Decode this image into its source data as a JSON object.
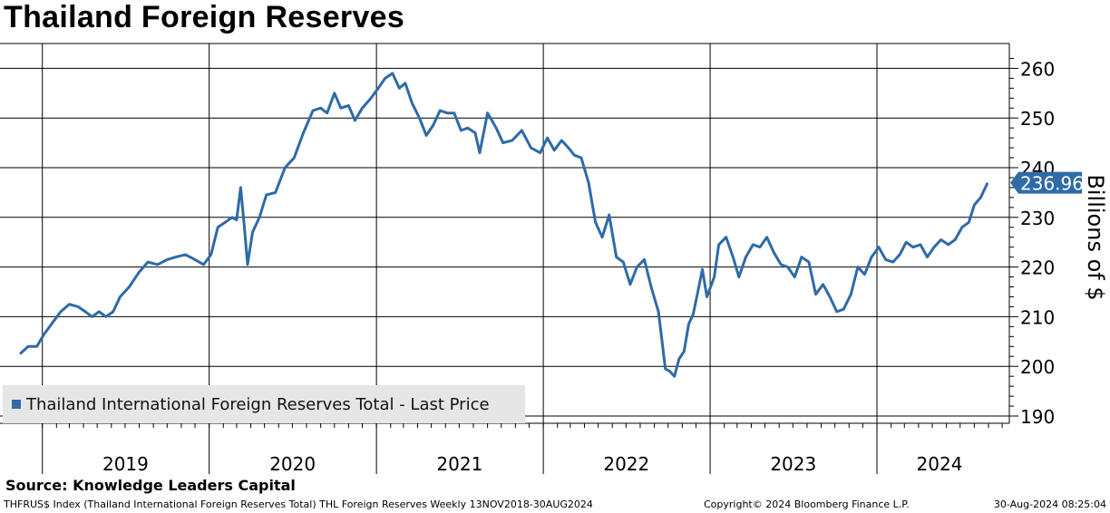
{
  "header": {
    "title": "Thailand Foreign Reserves"
  },
  "chart_data": {
    "type": "line",
    "title": "Thailand Foreign Reserves",
    "ylabel": "Billions of $",
    "ylim": [
      188,
      265
    ],
    "yticks": [
      190,
      200,
      210,
      220,
      230,
      240,
      250,
      260
    ],
    "year_labels": [
      "2019",
      "2020",
      "2021",
      "2022",
      "2023",
      "2024"
    ],
    "grid": true,
    "legend_position": "bottom-left",
    "last_value": 236.96,
    "last_value_label": "236.96",
    "series": [
      {
        "name": "Thailand International Foreign Reserves Total - Last Price",
        "color": "#2e6ba7",
        "start": "2018-11-13",
        "end": "2024-08-30",
        "points": [
          [
            "2018-11-13",
            202.5
          ],
          [
            "2018-12-01",
            204.0
          ],
          [
            "2018-12-20",
            204.0
          ],
          [
            "2019-01-05",
            206.5
          ],
          [
            "2019-01-25",
            209.0
          ],
          [
            "2019-02-10",
            211.0
          ],
          [
            "2019-03-01",
            212.5
          ],
          [
            "2019-03-20",
            212.0
          ],
          [
            "2019-04-05",
            211.0
          ],
          [
            "2019-04-20",
            210.0
          ],
          [
            "2019-05-05",
            211.0
          ],
          [
            "2019-05-20",
            210.0
          ],
          [
            "2019-06-05",
            211.0
          ],
          [
            "2019-06-20",
            214.0
          ],
          [
            "2019-07-10",
            216.0
          ],
          [
            "2019-08-01",
            219.0
          ],
          [
            "2019-08-20",
            221.0
          ],
          [
            "2019-09-10",
            220.5
          ],
          [
            "2019-10-01",
            221.5
          ],
          [
            "2019-10-20",
            222.0
          ],
          [
            "2019-11-10",
            222.5
          ],
          [
            "2019-12-01",
            221.5
          ],
          [
            "2019-12-20",
            220.5
          ],
          [
            "2020-01-05",
            222.5
          ],
          [
            "2020-01-20",
            228.0
          ],
          [
            "2020-02-05",
            229.0
          ],
          [
            "2020-02-20",
            230.0
          ],
          [
            "2020-03-01",
            229.5
          ],
          [
            "2020-03-10",
            236.0
          ],
          [
            "2020-03-18",
            228.0
          ],
          [
            "2020-03-25",
            220.5
          ],
          [
            "2020-04-05",
            227.0
          ],
          [
            "2020-04-20",
            230.0
          ],
          [
            "2020-05-05",
            234.5
          ],
          [
            "2020-05-25",
            235.0
          ],
          [
            "2020-06-15",
            240.0
          ],
          [
            "2020-07-05",
            242.0
          ],
          [
            "2020-07-25",
            247.0
          ],
          [
            "2020-08-15",
            251.5
          ],
          [
            "2020-09-01",
            252.0
          ],
          [
            "2020-09-15",
            251.0
          ],
          [
            "2020-10-01",
            255.0
          ],
          [
            "2020-10-15",
            252.0
          ],
          [
            "2020-11-01",
            252.5
          ],
          [
            "2020-11-15",
            249.5
          ],
          [
            "2020-12-01",
            252.0
          ],
          [
            "2020-12-20",
            254.0
          ],
          [
            "2021-01-05",
            256.0
          ],
          [
            "2021-01-20",
            258.0
          ],
          [
            "2021-02-05",
            259.0
          ],
          [
            "2021-02-20",
            256.0
          ],
          [
            "2021-03-05",
            257.0
          ],
          [
            "2021-03-20",
            253.0
          ],
          [
            "2021-04-05",
            250.0
          ],
          [
            "2021-04-20",
            246.5
          ],
          [
            "2021-05-05",
            248.5
          ],
          [
            "2021-05-20",
            251.5
          ],
          [
            "2021-06-05",
            251.0
          ],
          [
            "2021-06-20",
            251.0
          ],
          [
            "2021-07-05",
            247.5
          ],
          [
            "2021-07-20",
            248.0
          ],
          [
            "2021-08-05",
            247.0
          ],
          [
            "2021-08-15",
            243.0
          ],
          [
            "2021-09-01",
            251.0
          ],
          [
            "2021-09-20",
            248.0
          ],
          [
            "2021-10-05",
            245.0
          ],
          [
            "2021-10-25",
            245.5
          ],
          [
            "2021-11-15",
            247.5
          ],
          [
            "2021-12-05",
            244.0
          ],
          [
            "2021-12-25",
            243.0
          ],
          [
            "2022-01-10",
            246.0
          ],
          [
            "2022-01-25",
            243.5
          ],
          [
            "2022-02-10",
            245.5
          ],
          [
            "2022-02-25",
            244.0
          ],
          [
            "2022-03-10",
            242.5
          ],
          [
            "2022-03-25",
            242.0
          ],
          [
            "2022-04-10",
            237.0
          ],
          [
            "2022-04-25",
            229.0
          ],
          [
            "2022-05-10",
            226.0
          ],
          [
            "2022-05-25",
            230.5
          ],
          [
            "2022-06-10",
            222.0
          ],
          [
            "2022-06-25",
            221.0
          ],
          [
            "2022-07-10",
            216.5
          ],
          [
            "2022-07-25",
            220.0
          ],
          [
            "2022-08-10",
            221.5
          ],
          [
            "2022-08-25",
            216.0
          ],
          [
            "2022-09-10",
            211.0
          ],
          [
            "2022-09-25",
            199.5
          ],
          [
            "2022-10-05",
            199.0
          ],
          [
            "2022-10-15",
            198.0
          ],
          [
            "2022-10-25",
            201.5
          ],
          [
            "2022-11-05",
            203.0
          ],
          [
            "2022-11-15",
            208.5
          ],
          [
            "2022-11-25",
            210.5
          ],
          [
            "2022-12-05",
            215.0
          ],
          [
            "2022-12-15",
            219.5
          ],
          [
            "2022-12-25",
            214.0
          ],
          [
            "2023-01-10",
            218.0
          ],
          [
            "2023-01-20",
            224.5
          ],
          [
            "2023-02-05",
            226.0
          ],
          [
            "2023-02-20",
            222.0
          ],
          [
            "2023-03-05",
            218.0
          ],
          [
            "2023-03-20",
            222.0
          ],
          [
            "2023-04-05",
            224.5
          ],
          [
            "2023-04-20",
            224.0
          ],
          [
            "2023-05-05",
            226.0
          ],
          [
            "2023-05-20",
            223.0
          ],
          [
            "2023-06-05",
            220.5
          ],
          [
            "2023-06-20",
            220.0
          ],
          [
            "2023-07-05",
            218.0
          ],
          [
            "2023-07-20",
            222.0
          ],
          [
            "2023-08-05",
            221.0
          ],
          [
            "2023-08-20",
            214.5
          ],
          [
            "2023-09-05",
            216.5
          ],
          [
            "2023-09-20",
            214.0
          ],
          [
            "2023-10-05",
            211.0
          ],
          [
            "2023-10-20",
            211.5
          ],
          [
            "2023-11-05",
            214.5
          ],
          [
            "2023-11-20",
            220.0
          ],
          [
            "2023-12-05",
            218.5
          ],
          [
            "2023-12-20",
            222.0
          ],
          [
            "2024-01-05",
            224.0
          ],
          [
            "2024-01-20",
            221.5
          ],
          [
            "2024-02-05",
            221.0
          ],
          [
            "2024-02-20",
            222.5
          ],
          [
            "2024-03-05",
            225.0
          ],
          [
            "2024-03-20",
            224.0
          ],
          [
            "2024-04-05",
            224.5
          ],
          [
            "2024-04-20",
            222.0
          ],
          [
            "2024-05-05",
            224.0
          ],
          [
            "2024-05-20",
            225.5
          ],
          [
            "2024-06-05",
            224.5
          ],
          [
            "2024-06-20",
            225.5
          ],
          [
            "2024-07-05",
            228.0
          ],
          [
            "2024-07-20",
            229.0
          ],
          [
            "2024-08-01",
            232.5
          ],
          [
            "2024-08-15",
            234.0
          ],
          [
            "2024-08-30",
            236.96
          ]
        ]
      }
    ]
  },
  "footer": {
    "source": "Source:  Knowledge Leaders Capital",
    "index_info": "THFRUS$ Index (Thailand International Foreign Reserves Total) THL Foreign Reserves  Weekly 13NOV2018-30AUG2024",
    "copyright": "Copyright© 2024 Bloomberg Finance L.P.",
    "timestamp": "30-Aug-2024 08:25:04"
  }
}
